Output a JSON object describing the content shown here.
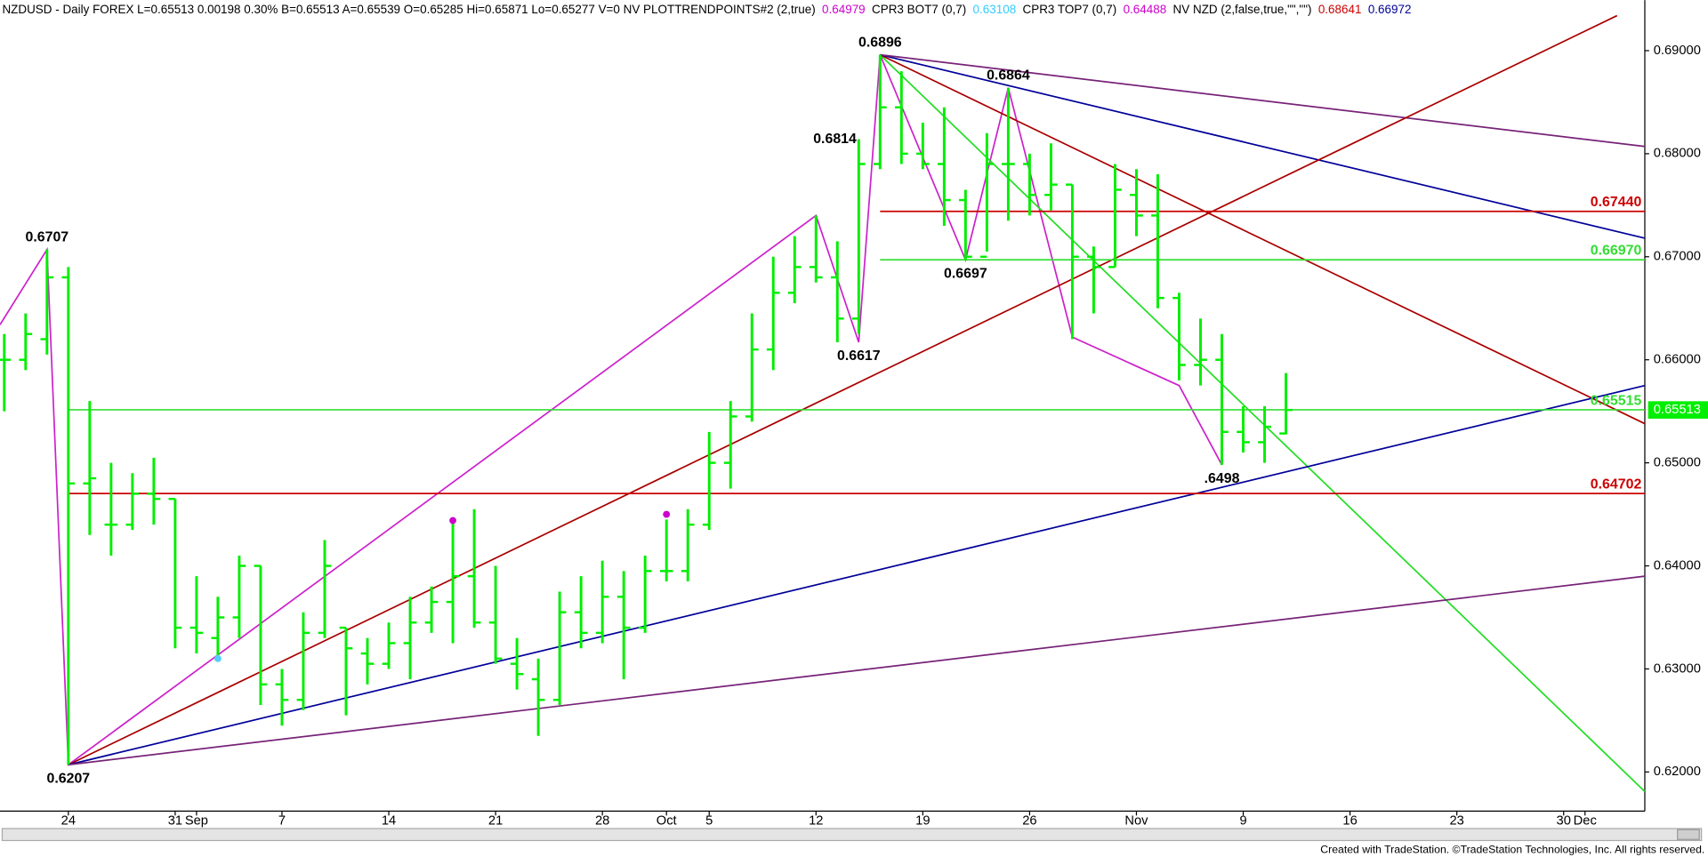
{
  "chart_data": {
    "type": "ohlc",
    "header": [
      {
        "text": "NZDUSD - Daily FOREX  L=0.65513  0.00198  0.30%  B=0.65513  A=0.65539  O=0.65285  Hi=0.65871  Lo=0.65277  V=0  NV PLOTTRENDPOINTS#2 (2,true)",
        "color": "#000000"
      },
      {
        "text": "0.64979",
        "color": "#cc00cc"
      },
      {
        "text": "CPR3 BOT7 (0,7)",
        "color": "#000000"
      },
      {
        "text": "0.63108",
        "color": "#33ccff"
      },
      {
        "text": "CPR3 TOP7 (0,7)",
        "color": "#000000"
      },
      {
        "text": "0.64488",
        "color": "#cc00cc"
      },
      {
        "text": "NV NZD (2,false,true,\"\",\"\")",
        "color": "#000000"
      },
      {
        "text": "0.68641",
        "color": "#cc0000"
      },
      {
        "text": "0.66972",
        "color": "#000099"
      }
    ],
    "footer": "Created with TradeStation. ©TradeStation Technologies, Inc. All rights reserved.",
    "color": "#00ee00",
    "x": [
      -3,
      -2,
      -1,
      0,
      1,
      2,
      3,
      4,
      5,
      6,
      7,
      8,
      9,
      10,
      11,
      12,
      13,
      14,
      15,
      16,
      17,
      18,
      19,
      20,
      21,
      22,
      23,
      24,
      25,
      26,
      27,
      28,
      29,
      30,
      31,
      32,
      33,
      34,
      35,
      36,
      37,
      38,
      39,
      40,
      41,
      42,
      43,
      44,
      45,
      46,
      47,
      48,
      49,
      50,
      51,
      52,
      53,
      54,
      55,
      56,
      57
    ],
    "open": [
      0.66,
      0.66,
      0.662,
      0.668,
      0.648,
      0.644,
      0.644,
      0.647,
      0.6465,
      0.634,
      0.633,
      0.635,
      0.64,
      0.6285,
      0.627,
      0.6335,
      0.634,
      0.6315,
      0.6305,
      0.6325,
      0.6345,
      0.6365,
      0.639,
      0.6345,
      0.6305,
      0.629,
      0.627,
      0.6355,
      0.6335,
      0.637,
      0.634,
      0.6395,
      0.6395,
      0.644,
      0.65,
      0.6545,
      0.661,
      0.6665,
      0.669,
      0.668,
      0.664,
      0.679,
      0.6845,
      0.68,
      0.679,
      0.6755,
      0.67,
      0.679,
      0.679,
      0.676,
      0.677,
      0.67,
      0.669,
      0.676,
      0.674,
      0.666,
      0.6595,
      0.66,
      0.653,
      0.652,
      0.65285
    ],
    "high": [
      0.6625,
      0.6645,
      0.6707,
      0.669,
      0.656,
      0.65,
      0.649,
      0.6505,
      0.6465,
      0.639,
      0.637,
      0.641,
      0.64,
      0.63,
      0.6355,
      0.6425,
      0.634,
      0.633,
      0.6345,
      0.637,
      0.638,
      0.6445,
      0.6455,
      0.64,
      0.633,
      0.631,
      0.6375,
      0.639,
      0.6405,
      0.6395,
      0.641,
      0.6445,
      0.6455,
      0.653,
      0.656,
      0.6645,
      0.67,
      0.672,
      0.674,
      0.6715,
      0.6814,
      0.6896,
      0.688,
      0.683,
      0.6845,
      0.6765,
      0.682,
      0.6864,
      0.68,
      0.681,
      0.677,
      0.671,
      0.679,
      0.6785,
      0.678,
      0.6665,
      0.664,
      0.6625,
      0.6555,
      0.6555,
      0.65871
    ],
    "low": [
      0.655,
      0.659,
      0.6605,
      0.6207,
      0.643,
      0.641,
      0.6435,
      0.644,
      0.632,
      0.6315,
      0.631,
      0.633,
      0.6265,
      0.6245,
      0.626,
      0.633,
      0.6255,
      0.6285,
      0.63,
      0.629,
      0.6335,
      0.6325,
      0.634,
      0.6305,
      0.628,
      0.6235,
      0.6265,
      0.632,
      0.6325,
      0.629,
      0.6335,
      0.6385,
      0.6385,
      0.6435,
      0.6475,
      0.654,
      0.659,
      0.6655,
      0.6675,
      0.6617,
      0.6625,
      0.6785,
      0.679,
      0.6785,
      0.673,
      0.6697,
      0.6705,
      0.6735,
      0.674,
      0.6745,
      0.662,
      0.6645,
      0.669,
      0.672,
      0.665,
      0.658,
      0.6575,
      0.6498,
      0.651,
      0.65,
      0.65277
    ],
    "close": [
      0.66,
      0.6625,
      0.668,
      0.648,
      0.6485,
      0.644,
      0.647,
      0.6465,
      0.634,
      0.6335,
      0.635,
      0.64,
      0.6285,
      0.627,
      0.6335,
      0.64,
      0.632,
      0.6305,
      0.6325,
      0.6345,
      0.6365,
      0.639,
      0.6345,
      0.631,
      0.6295,
      0.627,
      0.6355,
      0.6335,
      0.637,
      0.634,
      0.6395,
      0.6395,
      0.644,
      0.65,
      0.6545,
      0.661,
      0.6665,
      0.669,
      0.668,
      0.664,
      0.679,
      0.6845,
      0.68,
      0.679,
      0.6755,
      0.67,
      0.679,
      0.679,
      0.676,
      0.677,
      0.67,
      0.669,
      0.6765,
      0.674,
      0.666,
      0.6595,
      0.66,
      0.653,
      0.652,
      0.6535,
      0.65513
    ],
    "xlim": [
      -3.2,
      73.8
    ],
    "ylim": [
      0.6162,
      0.6949
    ],
    "xticks": [
      {
        "value": 0,
        "label": "24"
      },
      {
        "value": 5,
        "label": "31"
      },
      {
        "value": 6,
        "label": "Sep"
      },
      {
        "value": 10,
        "label": "7"
      },
      {
        "value": 15,
        "label": "14"
      },
      {
        "value": 20,
        "label": "21"
      },
      {
        "value": 25,
        "label": "28"
      },
      {
        "value": 28,
        "label": "Oct"
      },
      {
        "value": 30,
        "label": "5"
      },
      {
        "value": 35,
        "label": "12"
      },
      {
        "value": 40,
        "label": "19"
      },
      {
        "value": 45,
        "label": "26"
      },
      {
        "value": 50,
        "label": "Nov"
      },
      {
        "value": 55,
        "label": "9"
      },
      {
        "value": 60,
        "label": "16"
      },
      {
        "value": 65,
        "label": "23"
      },
      {
        "value": 70,
        "label": "30"
      },
      {
        "value": 71,
        "label": "Dec"
      }
    ],
    "yticks": [
      {
        "value": 0.62,
        "label": "0.62000"
      },
      {
        "value": 0.63,
        "label": "0.63000"
      },
      {
        "value": 0.64,
        "label": "0.64000"
      },
      {
        "value": 0.65,
        "label": "0.65000"
      },
      {
        "value": 0.66,
        "label": "0.66000"
      },
      {
        "value": 0.67,
        "label": "0.67000"
      },
      {
        "value": 0.68,
        "label": "0.68000"
      },
      {
        "value": 0.69,
        "label": "0.69000"
      }
    ],
    "last_price": {
      "value": 0.65513,
      "label": "0.65513",
      "color": "#00ee00"
    },
    "levels": [
      {
        "value": 0.6744,
        "label": "0.67440",
        "color": "#cc0000",
        "from": 38
      },
      {
        "value": 0.6697,
        "label": "0.66970",
        "color": "#33dd33",
        "from": 38
      },
      {
        "value": 0.65515,
        "label": "0.65515",
        "color": "#33dd33",
        "from": 0
      },
      {
        "value": 0.64702,
        "label": "0.64702",
        "color": "#cc0000",
        "from": 0
      }
    ],
    "trendlines": [
      {
        "color": "#cc22cc",
        "x": [
          -3.2,
          -1,
          0,
          35,
          37,
          38,
          42,
          44,
          47,
          52,
          54
        ],
        "y": [
          0.6634,
          0.6707,
          0.6207,
          0.674,
          0.6617,
          0.6896,
          0.6697,
          0.6864,
          0.6622,
          0.6575,
          0.6498
        ]
      },
      {
        "color": "#22dd22",
        "x": [
          38,
          73.8
        ],
        "y": [
          0.6896,
          0.6181
        ]
      },
      {
        "color": "#aa0000",
        "x": [
          38,
          73.8
        ],
        "y": [
          0.6896,
          0.6538
        ]
      },
      {
        "color": "#000099",
        "x": [
          38,
          73.8
        ],
        "y": [
          0.6896,
          0.6718
        ]
      },
      {
        "color": "#772277",
        "x": [
          38,
          73.8
        ],
        "y": [
          0.6896,
          0.6807
        ]
      },
      {
        "color": "#aa0000",
        "x": [
          0,
          72.5
        ],
        "y": [
          0.6207,
          0.6934
        ]
      },
      {
        "color": "#000099",
        "x": [
          0,
          73.8
        ],
        "y": [
          0.6207,
          0.6575
        ]
      },
      {
        "color": "#772277",
        "x": [
          0,
          73.8
        ],
        "y": [
          0.6207,
          0.639
        ]
      }
    ],
    "dots": [
      {
        "color": "#cc00cc",
        "x": 18,
        "y": 0.6444
      },
      {
        "color": "#cc00cc",
        "x": 28,
        "y": 0.645
      },
      {
        "color": "#55ccff",
        "x": 7,
        "y": 0.631
      }
    ],
    "annotations": [
      {
        "text": "0.6707",
        "x": -1,
        "y": 0.6707,
        "position": "above"
      },
      {
        "text": "0.6207",
        "x": 0,
        "y": 0.6207,
        "position": "below"
      },
      {
        "text": "0.6896",
        "x": 38,
        "y": 0.6896,
        "position": "above"
      },
      {
        "text": "0.6864",
        "x": 44,
        "y": 0.6864,
        "position": "above"
      },
      {
        "text": "0.6814",
        "x": 37,
        "y": 0.6814,
        "position": "left"
      },
      {
        "text": "0.6697",
        "x": 42,
        "y": 0.6697,
        "position": "below"
      },
      {
        "text": "0.6617",
        "x": 37,
        "y": 0.6617,
        "position": "below"
      },
      {
        "text": ".6498",
        "x": 54,
        "y": 0.6498,
        "position": "below"
      }
    ]
  }
}
